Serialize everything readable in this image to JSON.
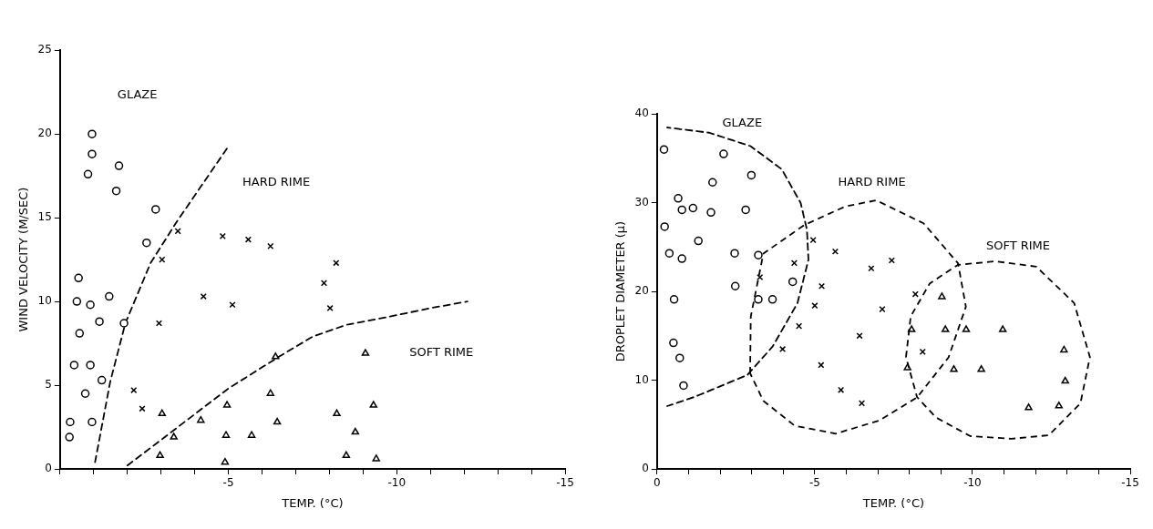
{
  "chart_data": [
    {
      "type": "scatter",
      "xlabel": "TEMP. (°C)",
      "ylabel": "WIND VELOCITY (M/SEC)",
      "grid": false,
      "legend": false,
      "xlim": [
        0,
        -15
      ],
      "ylim": [
        0,
        25
      ],
      "xticks": [
        {
          "value": 0,
          "label": null
        },
        {
          "value": -1,
          "label": null
        },
        {
          "value": -2,
          "label": null
        },
        {
          "value": -3,
          "label": null
        },
        {
          "value": -4,
          "label": null
        },
        -5,
        {
          "value": -6,
          "label": null
        },
        {
          "value": -7,
          "label": null
        },
        {
          "value": -8,
          "label": null
        },
        {
          "value": -9,
          "label": null
        },
        -10,
        {
          "value": -11,
          "label": null
        },
        {
          "value": -12,
          "label": null
        },
        {
          "value": -13,
          "label": null
        },
        {
          "value": -14,
          "label": null
        },
        -15
      ],
      "yticks": [
        0,
        5,
        10,
        15,
        20,
        25
      ],
      "annotations": [
        "GLAZE",
        "HARD RIME",
        "SOFT RIME"
      ],
      "series": [
        {
          "marker": "circle",
          "color": "#000000",
          "x": [
            -0.95,
            -0.95,
            -0.83,
            -1.75,
            -1.67,
            -2.84,
            -2.57,
            -0.55,
            -0.5,
            -0.9,
            -1.46,
            -1.17,
            -1.9,
            -0.58,
            -0.42,
            -0.9,
            -1.24,
            -0.75,
            -0.3,
            -0.95,
            -0.28
          ],
          "values": [
            20.0,
            18.8,
            17.6,
            18.1,
            16.6,
            15.5,
            13.5,
            11.4,
            10.0,
            9.8,
            10.3,
            8.8,
            8.7,
            8.1,
            6.2,
            6.2,
            5.3,
            4.5,
            2.8,
            2.8,
            1.9
          ]
        },
        {
          "marker": "cross",
          "color": "#000000",
          "x": [
            -3.5,
            -3.03,
            -2.94,
            -2.19,
            -2.44,
            -4.83,
            -5.59,
            -6.25,
            -4.26,
            -5.12,
            -8.2,
            -7.84,
            -8.02
          ],
          "values": [
            14.2,
            12.5,
            8.7,
            4.7,
            3.6,
            13.9,
            13.7,
            13.3,
            10.3,
            9.8,
            12.3,
            11.1,
            9.6
          ]
        },
        {
          "marker": "triangle",
          "color": "#000000",
          "x": [
            -3.03,
            -3.38,
            -2.97,
            -4.18,
            -4.96,
            -4.93,
            -5.69,
            -6.4,
            -6.25,
            -6.45,
            -4.9,
            -9.07,
            -9.31,
            -8.22,
            -8.77,
            -8.5,
            -9.39
          ],
          "values": [
            3.3,
            1.9,
            0.8,
            2.9,
            3.8,
            2.0,
            2.0,
            6.7,
            4.5,
            2.8,
            0.4,
            6.9,
            3.8,
            3.3,
            2.2,
            0.8,
            0.6
          ]
        },
        {
          "type": "line",
          "line_style": "dashed",
          "marker": "none",
          "color": "#000000",
          "x": [
            -1.04,
            -1.49,
            -1.94,
            -2.69,
            -3.48,
            -4.98
          ],
          "values": [
            0.4,
            5.2,
            8.7,
            12.3,
            14.8,
            19.2
          ]
        },
        {
          "type": "line",
          "line_style": "dashed",
          "marker": "none",
          "color": "#000000",
          "x": [
            -2,
            -3.5,
            -5,
            -6.5,
            -7.5,
            -8.5,
            -9.8,
            -11,
            -12.1
          ],
          "values": [
            0.2,
            2.5,
            4.8,
            6.7,
            7.9,
            8.6,
            9.1,
            9.6,
            10.0
          ]
        }
      ]
    },
    {
      "type": "scatter",
      "xlabel": "TEMP. (°C)",
      "ylabel": "DROPLET DIAMETER (μ)",
      "grid": false,
      "legend": false,
      "xlim": [
        0,
        -15
      ],
      "ylim": [
        0,
        40
      ],
      "xticks": [
        0,
        {
          "value": -1,
          "label": null
        },
        {
          "value": -2,
          "label": null
        },
        {
          "value": -3,
          "label": null
        },
        {
          "value": -4,
          "label": null
        },
        -5,
        {
          "value": -6,
          "label": null
        },
        {
          "value": -7,
          "label": null
        },
        {
          "value": -8,
          "label": null
        },
        {
          "value": -9,
          "label": null
        },
        -10,
        {
          "value": -11,
          "label": null
        },
        {
          "value": -12,
          "label": null
        },
        {
          "value": -13,
          "label": null
        },
        {
          "value": -14,
          "label": null
        },
        -15
      ],
      "yticks": [
        0,
        10,
        20,
        30,
        40
      ],
      "annotations": [
        "GLAZE",
        "HARD RIME",
        "SOFT RIME"
      ],
      "series": [
        {
          "marker": "circle",
          "color": "#000000",
          "x": [
            -0.22,
            -2.11,
            -2.99,
            -1.76,
            -0.67,
            -0.79,
            -1.14,
            -1.71,
            -2.81,
            -0.24,
            -1.31,
            -0.39,
            -0.79,
            -2.46,
            -3.21,
            -2.48,
            -0.54,
            -3.21,
            -3.66,
            -4.3,
            -0.52,
            -0.72,
            -0.84
          ],
          "values": [
            36.0,
            35.5,
            33.1,
            32.3,
            30.5,
            29.2,
            29.4,
            28.9,
            29.2,
            27.3,
            25.7,
            24.3,
            23.7,
            24.3,
            24.1,
            20.6,
            19.1,
            19.1,
            19.1,
            21.1,
            14.2,
            12.5,
            9.4
          ]
        },
        {
          "marker": "cross",
          "color": "#000000",
          "x": [
            -4.95,
            -5.65,
            -4.35,
            -3.26,
            -5.22,
            -5.0,
            -4.5,
            -3.98,
            -5.2,
            -5.83,
            -6.49,
            -6.42,
            -6.79,
            -7.44,
            -7.14,
            -8.19,
            -8.42
          ],
          "values": [
            25.8,
            24.5,
            23.2,
            21.6,
            20.6,
            18.4,
            16.1,
            13.5,
            11.7,
            8.9,
            7.4,
            15.0,
            22.6,
            23.5,
            18.0,
            19.7,
            13.2
          ]
        },
        {
          "marker": "triangle",
          "color": "#000000",
          "x": [
            -9.03,
            -8.07,
            -9.14,
            -9.8,
            -10.96,
            -7.94,
            -9.41,
            -10.28,
            -12.9,
            -12.94,
            -11.78,
            -12.74
          ],
          "values": [
            19.4,
            15.7,
            15.7,
            15.7,
            15.7,
            11.4,
            11.2,
            11.2,
            13.4,
            9.9,
            6.9,
            7.1
          ]
        }
      ]
    }
  ]
}
